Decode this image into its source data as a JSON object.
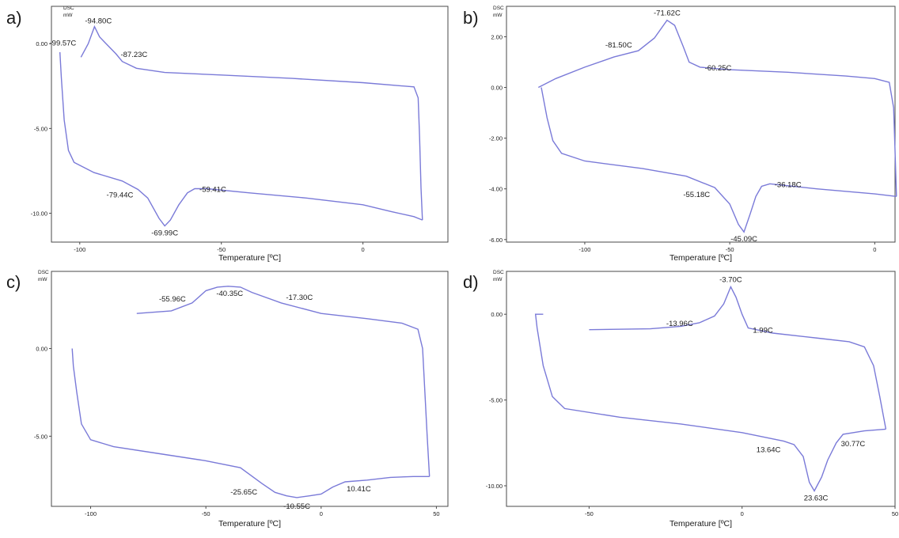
{
  "colors": {
    "curve": "#7a7ad8",
    "frame": "#4a4a4a",
    "text": "#1a1a1a"
  },
  "chart_data": [
    {
      "type": "line",
      "panel": "a)",
      "y_unit_line1": "DSC",
      "y_unit_line2": "mW",
      "xlabel": "Temperature [ºC]",
      "xlim": [
        -110,
        30
      ],
      "ylim": [
        -11.7,
        2.2
      ],
      "xticks": [
        -100,
        -50,
        0
      ],
      "xtick_labels": [
        "-100",
        "-50",
        "0"
      ],
      "yticks": [
        0,
        -5,
        -10
      ],
      "ytick_labels": [
        "0.00",
        "-5.00",
        "-10.00"
      ],
      "series": [
        {
          "points": [
            [
              -99.57,
              -0.8
            ],
            [
              -97,
              0
            ],
            [
              -94.8,
              1.0
            ],
            [
              -93,
              0.4
            ],
            [
              -91,
              0.05
            ],
            [
              -87.23,
              -0.6
            ],
            [
              -85,
              -1.05
            ],
            [
              -80,
              -1.45
            ],
            [
              -70,
              -1.7
            ],
            [
              -50,
              -1.85
            ],
            [
              -25,
              -2.05
            ],
            [
              0,
              -2.3
            ],
            [
              18,
              -2.55
            ],
            [
              19.5,
              -3.2
            ],
            [
              20,
              -5.5
            ],
            [
              20.5,
              -8.5
            ],
            [
              21,
              -10.4
            ]
          ]
        },
        {
          "points": [
            [
              21,
              -10.4
            ],
            [
              18,
              -10.2
            ],
            [
              10,
              -9.9
            ],
            [
              0,
              -9.5
            ],
            [
              -20,
              -9.1
            ],
            [
              -40,
              -8.8
            ],
            [
              -55,
              -8.55
            ],
            [
              -59.41,
              -8.55
            ],
            [
              -62,
              -8.8
            ],
            [
              -65,
              -9.5
            ],
            [
              -68,
              -10.4
            ],
            [
              -69.99,
              -10.75
            ],
            [
              -72,
              -10.3
            ],
            [
              -76,
              -9.1
            ],
            [
              -79.44,
              -8.6
            ],
            [
              -85,
              -8.1
            ],
            [
              -95,
              -7.6
            ],
            [
              -102,
              -7.0
            ],
            [
              -104,
              -6.3
            ],
            [
              -105.5,
              -4.5
            ],
            [
              -106.5,
              -2.0
            ],
            [
              -107,
              -0.5
            ]
          ]
        }
      ],
      "annotations": [
        {
          "text": "-94.80C",
          "x": -94.8,
          "y": 1.0
        },
        {
          "text": "-99.57C",
          "x": -99.57,
          "y": -0.1
        },
        {
          "text": "-87.23C",
          "x": -87.23,
          "y": -0.6
        },
        {
          "text": "-79.44C",
          "x": -79.44,
          "y": -8.6
        },
        {
          "text": "-69.99C",
          "x": -69.99,
          "y": -10.75
        },
        {
          "text": "-59.41C",
          "x": -59.41,
          "y": -8.55
        }
      ]
    },
    {
      "type": "line",
      "panel": "b)",
      "y_unit_line1": "DSC",
      "y_unit_line2": "mW",
      "xlabel": "Temperature [ºC]",
      "xlim": [
        -127,
        7
      ],
      "ylim": [
        -6.1,
        3.2
      ],
      "xticks": [
        -100,
        -50,
        0
      ],
      "xtick_labels": [
        "-100",
        "-50",
        "0"
      ],
      "yticks": [
        2,
        0,
        -2,
        -4,
        -6
      ],
      "ytick_labels": [
        "2.00",
        "0.00",
        "-2.00",
        "-4.00",
        "-6.00"
      ],
      "series": [
        {
          "points": [
            [
              -116,
              0.0
            ],
            [
              -110,
              0.35
            ],
            [
              -100,
              0.8
            ],
            [
              -90,
              1.2
            ],
            [
              -81.5,
              1.45
            ],
            [
              -76,
              1.95
            ],
            [
              -71.62,
              2.65
            ],
            [
              -69,
              2.45
            ],
            [
              -66,
              1.6
            ],
            [
              -64,
              1.0
            ],
            [
              -60.25,
              0.8
            ],
            [
              -50,
              0.7
            ],
            [
              -30,
              0.6
            ],
            [
              -10,
              0.45
            ],
            [
              0,
              0.35
            ],
            [
              5,
              0.2
            ],
            [
              6.5,
              -0.8
            ],
            [
              7,
              -2.5
            ],
            [
              7.5,
              -4.3
            ]
          ]
        },
        {
          "points": [
            [
              7.5,
              -4.3
            ],
            [
              0,
              -4.2
            ],
            [
              -20,
              -4.0
            ],
            [
              -36.18,
              -3.8
            ],
            [
              -39,
              -3.9
            ],
            [
              -41,
              -4.3
            ],
            [
              -43,
              -5.0
            ],
            [
              -45.09,
              -5.7
            ],
            [
              -47,
              -5.4
            ],
            [
              -50,
              -4.6
            ],
            [
              -55.18,
              -3.95
            ],
            [
              -65,
              -3.5
            ],
            [
              -80,
              -3.2
            ],
            [
              -100,
              -2.9
            ],
            [
              -108,
              -2.6
            ],
            [
              -111,
              -2.1
            ],
            [
              -113,
              -1.2
            ],
            [
              -115,
              0.0
            ]
          ]
        }
      ],
      "annotations": [
        {
          "text": "-71.62C",
          "x": -71.62,
          "y": 2.65
        },
        {
          "text": "-81.50C",
          "x": -81.5,
          "y": 1.45
        },
        {
          "text": "-60.25C",
          "x": -60.25,
          "y": 0.8
        },
        {
          "text": "-36.18C",
          "x": -36.18,
          "y": -3.8
        },
        {
          "text": "-55.18C",
          "x": -55.18,
          "y": -3.95
        },
        {
          "text": "-45.09C",
          "x": -45.09,
          "y": -5.7
        }
      ]
    },
    {
      "type": "line",
      "panel": "c)",
      "y_unit_line1": "DSC",
      "y_unit_line2": "mW",
      "xlabel": "Temperature [ºC]",
      "xlim": [
        -117,
        55
      ],
      "ylim": [
        -9.0,
        4.4
      ],
      "xticks": [
        -100,
        -50,
        0,
        50
      ],
      "xtick_labels": [
        "-100",
        "-50",
        "0",
        "50"
      ],
      "yticks": [
        0,
        -5
      ],
      "ytick_labels": [
        "0.00",
        "-5.00"
      ],
      "series": [
        {
          "points": [
            [
              -80,
              2.0
            ],
            [
              -65,
              2.15
            ],
            [
              -55.96,
              2.6
            ],
            [
              -50,
              3.3
            ],
            [
              -45,
              3.5
            ],
            [
              -40.35,
              3.55
            ],
            [
              -35,
              3.5
            ],
            [
              -30,
              3.2
            ],
            [
              -17.3,
              2.6
            ],
            [
              0,
              2.0
            ],
            [
              20,
              1.7
            ],
            [
              35,
              1.45
            ],
            [
              42,
              1.1
            ],
            [
              44,
              0.0
            ],
            [
              45,
              -2.5
            ],
            [
              46,
              -5.0
            ],
            [
              47,
              -7.3
            ]
          ]
        },
        {
          "points": [
            [
              47,
              -7.3
            ],
            [
              40,
              -7.3
            ],
            [
              30,
              -7.35
            ],
            [
              20,
              -7.5
            ],
            [
              10.41,
              -7.6
            ],
            [
              5,
              -7.9
            ],
            [
              0,
              -8.3
            ],
            [
              -5,
              -8.4
            ],
            [
              -10.55,
              -8.5
            ],
            [
              -15,
              -8.4
            ],
            [
              -20,
              -8.2
            ],
            [
              -25.65,
              -7.7
            ],
            [
              -35,
              -6.8
            ],
            [
              -50,
              -6.4
            ],
            [
              -70,
              -6.0
            ],
            [
              -90,
              -5.6
            ],
            [
              -100,
              -5.2
            ],
            [
              -104,
              -4.3
            ],
            [
              -106,
              -2.5
            ],
            [
              -107.5,
              -1.0
            ],
            [
              -108,
              0.0
            ]
          ]
        }
      ],
      "annotations": [
        {
          "text": "-55.96C",
          "x": -55.96,
          "y": 2.6
        },
        {
          "text": "-40.35C",
          "x": -40.35,
          "y": 3.55
        },
        {
          "text": "-17.30C",
          "x": -17.3,
          "y": 2.6
        },
        {
          "text": "-25.65C",
          "x": -25.65,
          "y": -7.7
        },
        {
          "text": "-10.55C",
          "x": -10.55,
          "y": -8.5
        },
        {
          "text": "10.41C",
          "x": 10.41,
          "y": -7.6
        }
      ]
    },
    {
      "type": "line",
      "panel": "d)",
      "y_unit_line1": "DSC",
      "y_unit_line2": "mW",
      "xlabel": "Temperature [ºC]",
      "xlim": [
        -77,
        50
      ],
      "ylim": [
        -11.2,
        2.5
      ],
      "xticks": [
        -50,
        0,
        50
      ],
      "xtick_labels": [
        "-50",
        "0",
        "50"
      ],
      "yticks": [
        0,
        -5,
        -10
      ],
      "ytick_labels": [
        "0.00",
        "-5.00",
        "-10.00"
      ],
      "series": [
        {
          "points": [
            [
              -50,
              -0.9
            ],
            [
              -30,
              -0.85
            ],
            [
              -20,
              -0.7
            ],
            [
              -13.96,
              -0.5
            ],
            [
              -9,
              -0.1
            ],
            [
              -6,
              0.6
            ],
            [
              -3.7,
              1.6
            ],
            [
              -2,
              1.0
            ],
            [
              0,
              0.0
            ],
            [
              1.99,
              -0.8
            ],
            [
              10,
              -1.1
            ],
            [
              25,
              -1.4
            ],
            [
              35,
              -1.6
            ],
            [
              40,
              -1.9
            ],
            [
              43,
              -3.0
            ],
            [
              45,
              -4.8
            ],
            [
              47,
              -6.7
            ]
          ]
        },
        {
          "points": [
            [
              47,
              -6.7
            ],
            [
              40,
              -6.8
            ],
            [
              33,
              -7.0
            ],
            [
              30.77,
              -7.5
            ],
            [
              28,
              -8.5
            ],
            [
              26,
              -9.5
            ],
            [
              23.63,
              -10.3
            ],
            [
              22,
              -9.8
            ],
            [
              20,
              -8.3
            ],
            [
              17,
              -7.6
            ],
            [
              13.64,
              -7.4
            ],
            [
              0,
              -6.9
            ],
            [
              -20,
              -6.4
            ],
            [
              -40,
              -6.0
            ],
            [
              -58,
              -5.5
            ],
            [
              -62,
              -4.8
            ],
            [
              -65,
              -3.0
            ],
            [
              -67,
              -0.8
            ],
            [
              -67.5,
              0.0
            ],
            [
              -65,
              0.0
            ]
          ]
        }
      ],
      "annotations": [
        {
          "text": "-3.70C",
          "x": -3.7,
          "y": 1.6
        },
        {
          "text": "-13.96C",
          "x": -13.96,
          "y": -0.5
        },
        {
          "text": "1.99C",
          "x": 1.99,
          "y": -0.8
        },
        {
          "text": "13.64C",
          "x": 13.64,
          "y": -7.4
        },
        {
          "text": "30.77C",
          "x": 30.77,
          "y": -7.5
        },
        {
          "text": "23.63C",
          "x": 23.63,
          "y": -10.3
        }
      ]
    }
  ]
}
